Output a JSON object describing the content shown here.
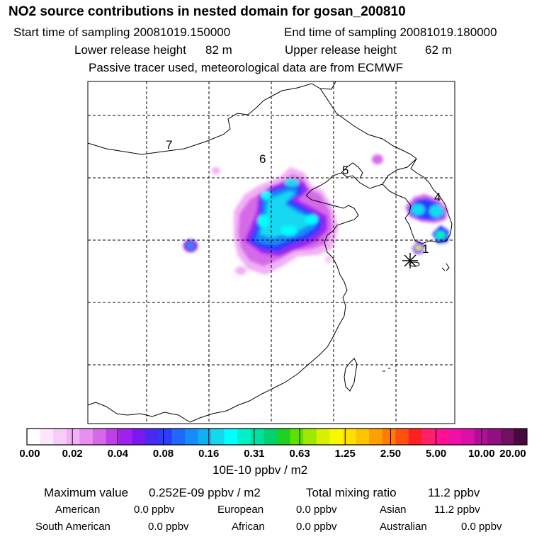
{
  "header": {
    "title": "NO2 source contributions in nested domain for gosan_200810",
    "start_label": "Start time of sampling 20081019.150000",
    "end_label": "End time of sampling 20081019.180000",
    "lower_label": "Lower release height",
    "lower_value": "82 m",
    "upper_label": "Upper release height",
    "upper_value": "62 m",
    "tracer_note": "Passive tracer used, meteorological data are from ECMWF"
  },
  "map": {
    "region_labels": [
      "7",
      "6",
      "5",
      "4",
      "1"
    ],
    "receptor_marker": "asterisk-icon"
  },
  "colorbar": {
    "colors": [
      "#ffffff",
      "#fce6fc",
      "#f8ccf8",
      "#f2b0f5",
      "#e890f0",
      "#d56ae8",
      "#c040e8",
      "#a020f0",
      "#7a18f0",
      "#4a2af0",
      "#2a3cff",
      "#1e68ff",
      "#168cf8",
      "#10b0f0",
      "#14d8f0",
      "#00ffff",
      "#00f0c8",
      "#00e0a0",
      "#00d070",
      "#20d020",
      "#60e000",
      "#a0e800",
      "#d8f000",
      "#f8f800",
      "#ffe000",
      "#ffc400",
      "#ffa000",
      "#ff7c00",
      "#ff5010",
      "#ff2020",
      "#ff2068",
      "#ff1090",
      "#f010a8",
      "#d810a8",
      "#b01098",
      "#901080",
      "#701060",
      "#4a0840"
    ],
    "tick_labels": [
      "0.00",
      "0.02",
      "0.04",
      "0.08",
      "0.16",
      "0.31",
      "0.63",
      "1.25",
      "2.50",
      "5.00",
      "10.00",
      "20.00"
    ],
    "unit": "10E-10 ppbv / m2"
  },
  "stats": {
    "max_label": "Maximum value",
    "max_value": "0.252E-09 ppbv / m2",
    "total_label": "Total mixing ratio",
    "total_value": "11.2 ppbv",
    "regions": [
      {
        "name": "American",
        "value": "0.0 ppbv"
      },
      {
        "name": "European",
        "value": "0.0 ppbv"
      },
      {
        "name": "Asian",
        "value": "11.2 ppbv"
      },
      {
        "name": "South American",
        "value": "0.0 ppbv"
      },
      {
        "name": "African",
        "value": "0.0 ppbv"
      },
      {
        "name": "Australian",
        "value": "0.0 ppbv"
      }
    ]
  }
}
